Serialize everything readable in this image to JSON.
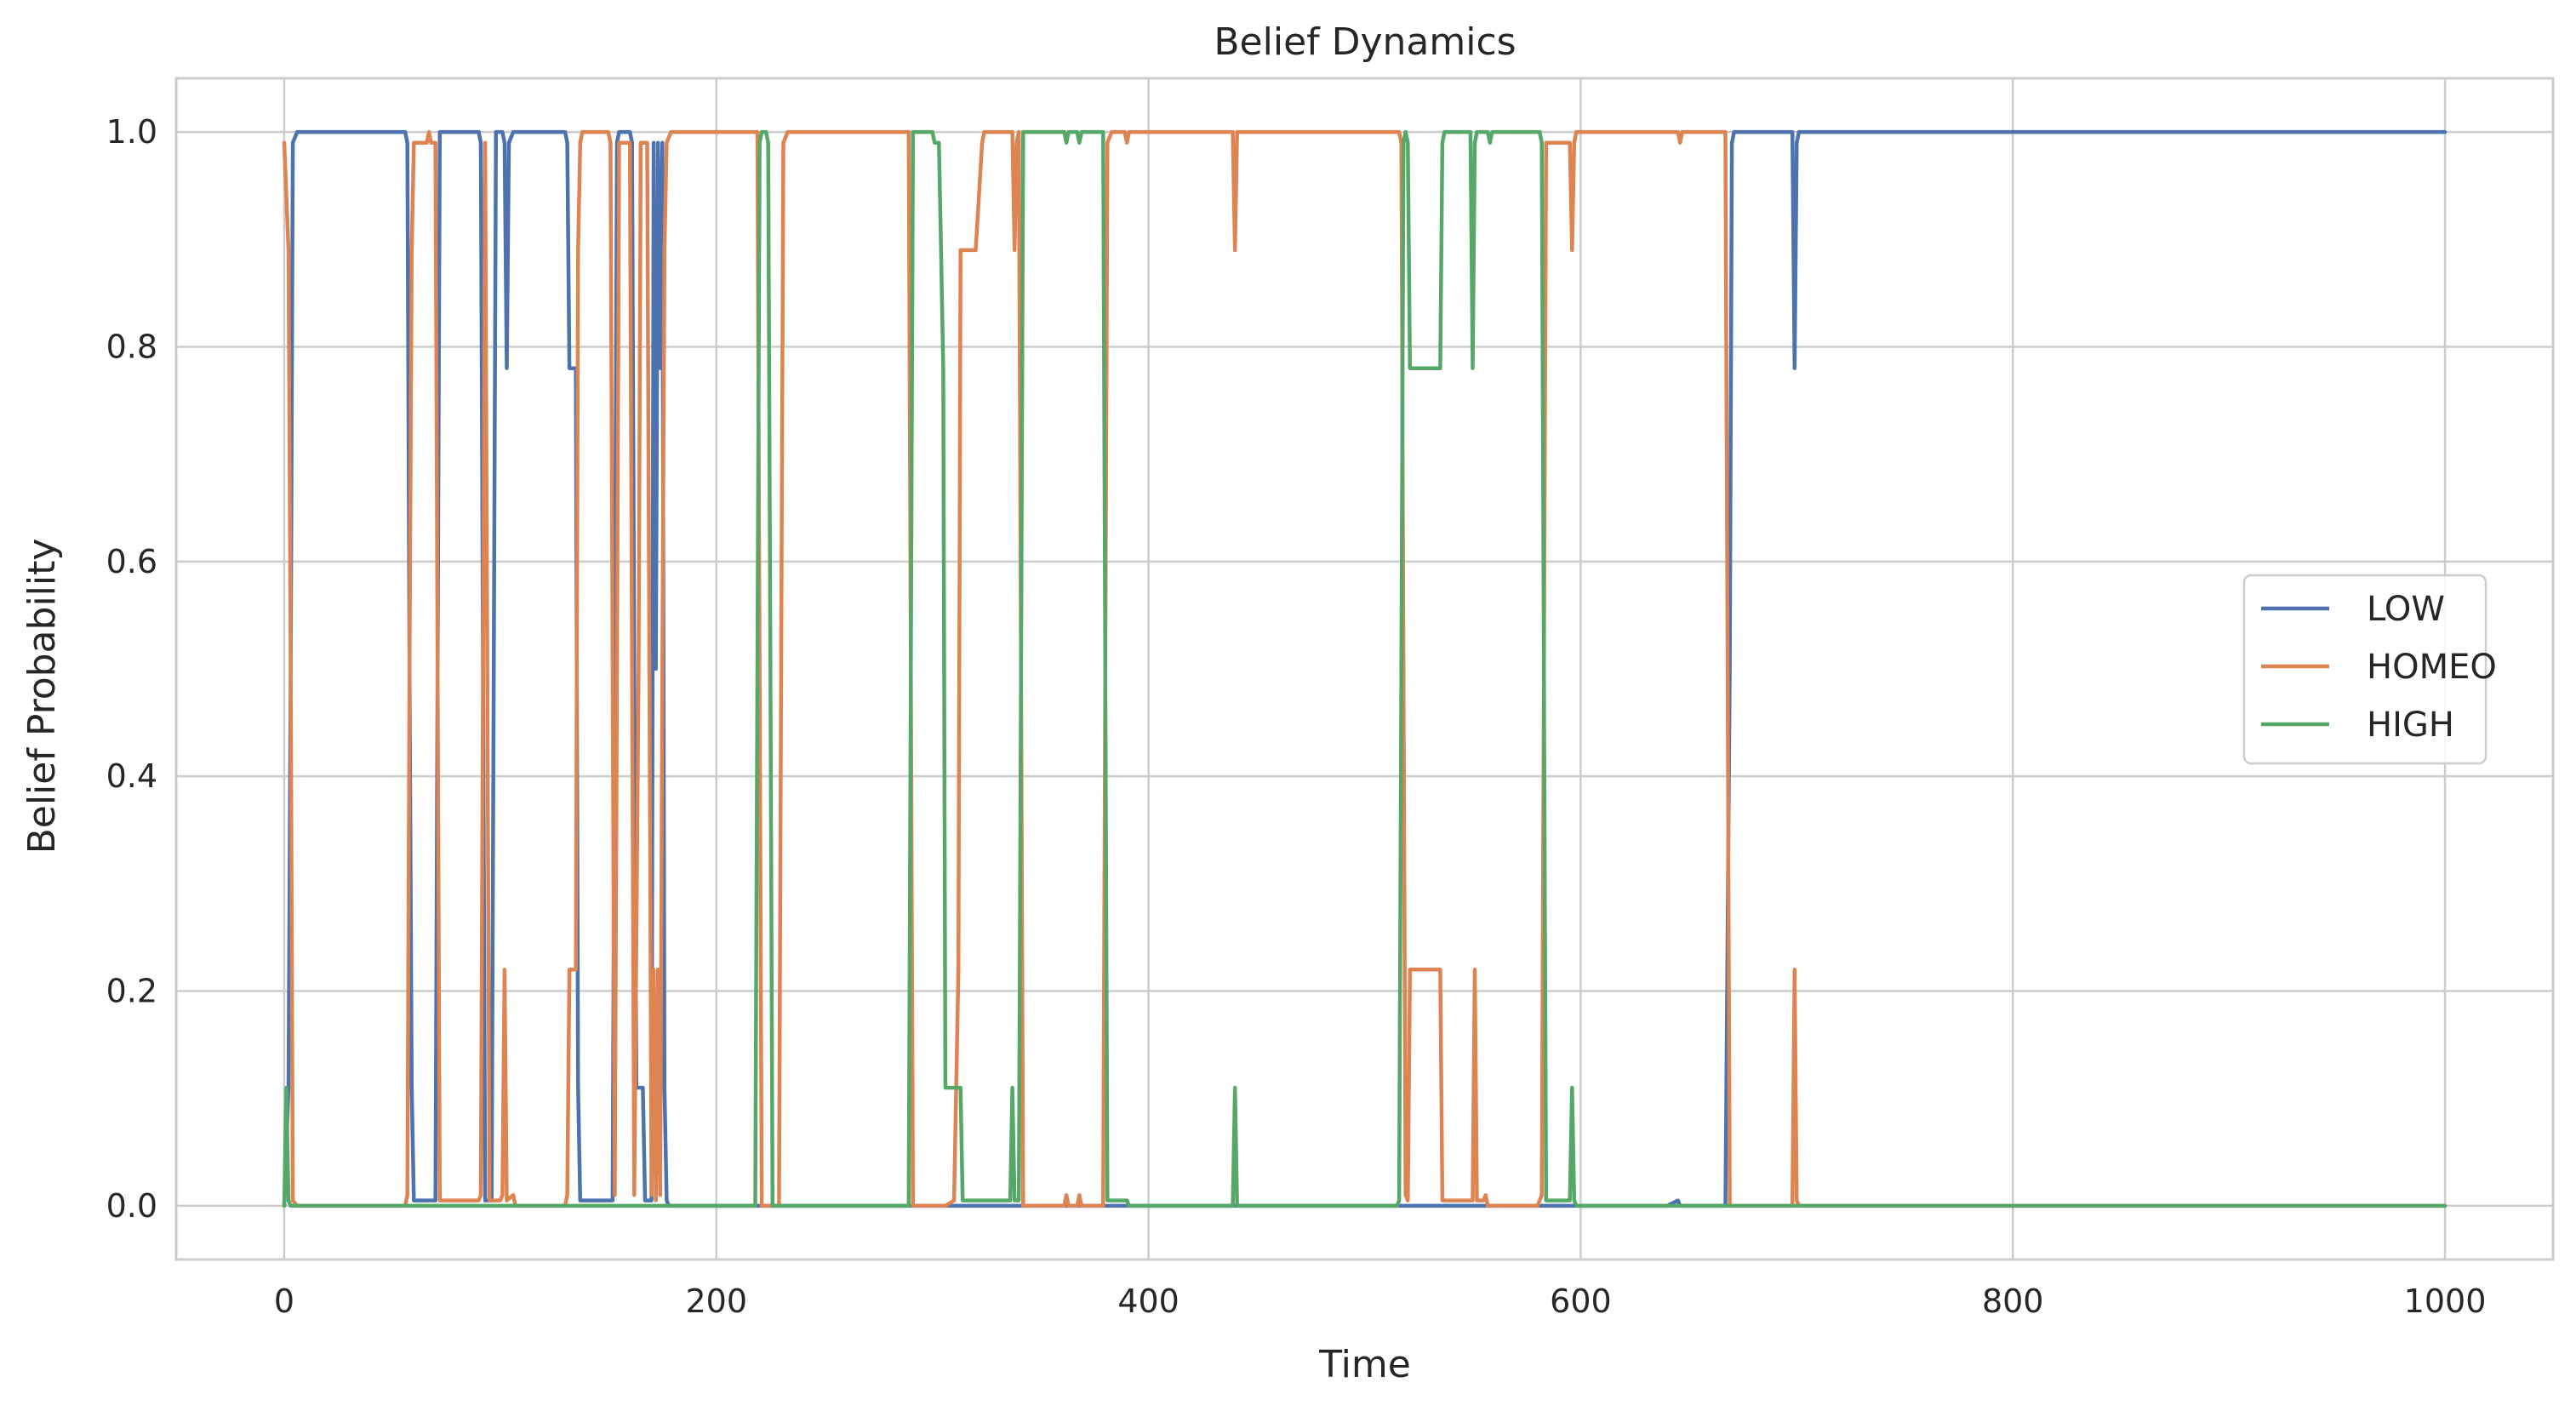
{
  "chart_data": {
    "type": "line",
    "title": "Belief Dynamics",
    "xlabel": "Time",
    "ylabel": "Belief Probability",
    "xlim": [
      -50,
      1050
    ],
    "ylim": [
      -0.05,
      1.05
    ],
    "xticks": [
      0,
      200,
      400,
      600,
      800,
      1000
    ],
    "yticks": [
      0.0,
      0.2,
      0.4,
      0.6,
      0.8,
      1.0
    ],
    "xtick_labels": [
      "0",
      "200",
      "400",
      "600",
      "800",
      "1000"
    ],
    "ytick_labels": [
      "0.0",
      "0.2",
      "0.4",
      "0.6",
      "0.8",
      "1.0"
    ],
    "grid": true,
    "legend_position": "right",
    "series": [
      {
        "name": "LOW",
        "color": "#4c72b0",
        "points": [
          [
            0,
            0
          ],
          [
            2,
            0.11
          ],
          [
            3,
            0.5
          ],
          [
            4,
            0.99
          ],
          [
            6,
            1
          ],
          [
            56,
            1
          ],
          [
            57,
            0.99
          ],
          [
            58,
            0.5
          ],
          [
            59,
            0.11
          ],
          [
            60,
            0.005
          ],
          [
            70,
            0.005
          ],
          [
            71,
            0.5
          ],
          [
            72,
            1
          ],
          [
            90,
            1
          ],
          [
            91,
            0.99
          ],
          [
            92,
            0.5
          ],
          [
            93,
            0.005
          ],
          [
            96,
            0.005
          ],
          [
            97,
            0.5
          ],
          [
            98,
            1
          ],
          [
            101,
            1
          ],
          [
            102,
            0.99
          ],
          [
            103,
            0.78
          ],
          [
            104,
            0.99
          ],
          [
            106,
            1
          ],
          [
            130,
            1
          ],
          [
            131,
            0.99
          ],
          [
            132,
            0.78
          ],
          [
            135,
            0.78
          ],
          [
            136,
            0.11
          ],
          [
            137,
            0.005
          ],
          [
            152,
            0.005
          ],
          [
            153,
            0.5
          ],
          [
            154,
            0.99
          ],
          [
            155,
            1
          ],
          [
            160,
            1
          ],
          [
            161,
            0.99
          ],
          [
            162,
            0.5
          ],
          [
            163,
            0.11
          ],
          [
            166,
            0.11
          ],
          [
            167,
            0.005
          ],
          [
            170,
            0.005
          ],
          [
            171,
            0.99
          ],
          [
            172,
            0.5
          ],
          [
            173,
            0.99
          ],
          [
            174,
            0.78
          ],
          [
            175,
            0.99
          ],
          [
            176,
            0.11
          ],
          [
            177,
            0.005
          ],
          [
            178,
            0
          ],
          [
            640,
            0
          ],
          [
            645,
            0.005
          ],
          [
            646,
            0
          ],
          [
            667,
            0
          ],
          [
            669,
            0.5
          ],
          [
            670,
            0.99
          ],
          [
            671,
            1
          ],
          [
            698,
            1
          ],
          [
            699,
            0.78
          ],
          [
            700,
            0.99
          ],
          [
            701,
            1
          ],
          [
            1000,
            1
          ]
        ]
      },
      {
        "name": "HOMEO",
        "color": "#dd8452",
        "points": [
          [
            0,
            0.99
          ],
          [
            2,
            0.89
          ],
          [
            3,
            0.5
          ],
          [
            4,
            0.005
          ],
          [
            6,
            0
          ],
          [
            56,
            0
          ],
          [
            57,
            0.01
          ],
          [
            58,
            0.5
          ],
          [
            59,
            0.89
          ],
          [
            60,
            0.99
          ],
          [
            66,
            0.99
          ],
          [
            67,
            1
          ],
          [
            68,
            0.99
          ],
          [
            70,
            0.99
          ],
          [
            71,
            0.5
          ],
          [
            72,
            0.005
          ],
          [
            90,
            0.005
          ],
          [
            91,
            0.01
          ],
          [
            92,
            0.5
          ],
          [
            93,
            0.99
          ],
          [
            94,
            0.5
          ],
          [
            95,
            0.005
          ],
          [
            100,
            0.005
          ],
          [
            101,
            0.01
          ],
          [
            102,
            0.22
          ],
          [
            103,
            0.005
          ],
          [
            106,
            0.01
          ],
          [
            107,
            0
          ],
          [
            130,
            0
          ],
          [
            131,
            0.01
          ],
          [
            132,
            0.22
          ],
          [
            135,
            0.22
          ],
          [
            136,
            0.89
          ],
          [
            137,
            0.99
          ],
          [
            138,
            1
          ],
          [
            150,
            1
          ],
          [
            151,
            0.99
          ],
          [
            152,
            0.5
          ],
          [
            153,
            0.01
          ],
          [
            154,
            0.5
          ],
          [
            155,
            0.99
          ],
          [
            160,
            0.99
          ],
          [
            161,
            0.5
          ],
          [
            162,
            0.01
          ],
          [
            164,
            0.5
          ],
          [
            165,
            0.99
          ],
          [
            168,
            0.99
          ],
          [
            169,
            0.5
          ],
          [
            170,
            0.01
          ],
          [
            171,
            0.22
          ],
          [
            172,
            0.005
          ],
          [
            173,
            0.22
          ],
          [
            174,
            0.01
          ],
          [
            175,
            0.5
          ],
          [
            176,
            0.89
          ],
          [
            177,
            0.99
          ],
          [
            179,
            1
          ],
          [
            219,
            1
          ],
          [
            220,
            0.5
          ],
          [
            221,
            0
          ],
          [
            229,
            0
          ],
          [
            230,
            0.5
          ],
          [
            231,
            0.99
          ],
          [
            233,
            1
          ],
          [
            289,
            1
          ],
          [
            290,
            0.5
          ],
          [
            291,
            0
          ],
          [
            306,
            0
          ],
          [
            310,
            0.005
          ],
          [
            312,
            0.22
          ],
          [
            313,
            0.89
          ],
          [
            320,
            0.89
          ],
          [
            323,
            0.99
          ],
          [
            324,
            1
          ],
          [
            337,
            1
          ],
          [
            338,
            0.89
          ],
          [
            339,
            0.99
          ],
          [
            340,
            1
          ],
          [
            341,
            0.5
          ],
          [
            342,
            0
          ],
          [
            361,
            0
          ],
          [
            362,
            0.01
          ],
          [
            363,
            0
          ],
          [
            367,
            0
          ],
          [
            368,
            0.01
          ],
          [
            369,
            0
          ],
          [
            379,
            0
          ],
          [
            380,
            0.5
          ],
          [
            381,
            0.99
          ],
          [
            383,
            1
          ],
          [
            389,
            1
          ],
          [
            390,
            0.99
          ],
          [
            391,
            1
          ],
          [
            439,
            1
          ],
          [
            440,
            0.89
          ],
          [
            441,
            1
          ],
          [
            516,
            1
          ],
          [
            517,
            0.99
          ],
          [
            518,
            0.5
          ],
          [
            519,
            0.01
          ],
          [
            520,
            0.005
          ],
          [
            521,
            0.22
          ],
          [
            535,
            0.22
          ],
          [
            536,
            0.005
          ],
          [
            550,
            0.005
          ],
          [
            551,
            0.22
          ],
          [
            552,
            0.005
          ],
          [
            555,
            0.005
          ],
          [
            556,
            0.01
          ],
          [
            557,
            0
          ],
          [
            580,
            0
          ],
          [
            581,
            0.005
          ],
          [
            582,
            0.01
          ],
          [
            583,
            0.5
          ],
          [
            584,
            0.99
          ],
          [
            595,
            0.99
          ],
          [
            596,
            0.89
          ],
          [
            597,
            0.99
          ],
          [
            598,
            1
          ],
          [
            645,
            1
          ],
          [
            646,
            0.99
          ],
          [
            647,
            1
          ],
          [
            667,
            1
          ],
          [
            668,
            0.5
          ],
          [
            669,
            0
          ],
          [
            698,
            0
          ],
          [
            699,
            0.22
          ],
          [
            700,
            0.005
          ],
          [
            701,
            0
          ],
          [
            1000,
            0
          ]
        ]
      },
      {
        "name": "HIGH",
        "color": "#55a868",
        "points": [
          [
            0,
            0
          ],
          [
            1,
            0.11
          ],
          [
            2,
            0.005
          ],
          [
            3,
            0
          ],
          [
            218,
            0
          ],
          [
            219,
            0.5
          ],
          [
            220,
            0.99
          ],
          [
            221,
            1
          ],
          [
            223,
            1
          ],
          [
            224,
            0.99
          ],
          [
            225,
            0.5
          ],
          [
            226,
            0
          ],
          [
            289,
            0
          ],
          [
            290,
            0.5
          ],
          [
            291,
            1
          ],
          [
            300,
            1
          ],
          [
            301,
            0.99
          ],
          [
            303,
            0.99
          ],
          [
            304,
            0.89
          ],
          [
            305,
            0.78
          ],
          [
            306,
            0.11
          ],
          [
            313,
            0.11
          ],
          [
            314,
            0.005
          ],
          [
            336,
            0.005
          ],
          [
            337,
            0.11
          ],
          [
            338,
            0.005
          ],
          [
            340,
            0.005
          ],
          [
            341,
            0.5
          ],
          [
            342,
            1
          ],
          [
            361,
            1
          ],
          [
            362,
            0.99
          ],
          [
            363,
            1
          ],
          [
            367,
            1
          ],
          [
            368,
            0.99
          ],
          [
            369,
            1
          ],
          [
            379,
            1
          ],
          [
            380,
            0.5
          ],
          [
            381,
            0.005
          ],
          [
            390,
            0.005
          ],
          [
            391,
            0
          ],
          [
            439,
            0
          ],
          [
            440,
            0.11
          ],
          [
            441,
            0
          ],
          [
            515,
            0
          ],
          [
            516,
            0.005
          ],
          [
            517,
            0.5
          ],
          [
            518,
            0.99
          ],
          [
            519,
            1
          ],
          [
            520,
            0.99
          ],
          [
            521,
            0.78
          ],
          [
            535,
            0.78
          ],
          [
            536,
            0.99
          ],
          [
            537,
            1
          ],
          [
            549,
            1
          ],
          [
            550,
            0.78
          ],
          [
            551,
            0.99
          ],
          [
            552,
            1
          ],
          [
            557,
            1
          ],
          [
            558,
            0.99
          ],
          [
            559,
            1
          ],
          [
            581,
            1
          ],
          [
            582,
            0.99
          ],
          [
            583,
            0.5
          ],
          [
            584,
            0.005
          ],
          [
            595,
            0.005
          ],
          [
            596,
            0.11
          ],
          [
            597,
            0.005
          ],
          [
            598,
            0
          ],
          [
            1000,
            0
          ]
        ]
      }
    ]
  }
}
